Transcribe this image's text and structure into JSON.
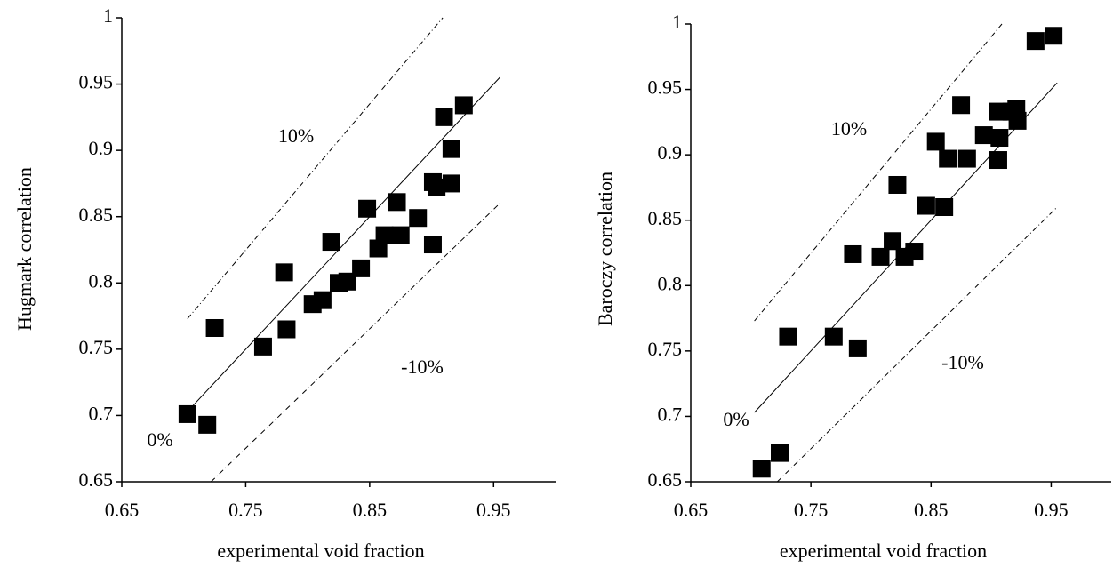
{
  "chart_data": [
    {
      "type": "scatter",
      "xlabel": "experimental void fraction",
      "ylabel": "Hugmark correlation",
      "color": "#000000",
      "x": [
        0.703,
        0.719,
        0.725,
        0.764,
        0.781,
        0.783,
        0.804,
        0.812,
        0.819,
        0.825,
        0.832,
        0.843,
        0.848,
        0.857,
        0.862,
        0.872,
        0.875,
        0.889,
        0.901,
        0.901,
        0.904,
        0.916,
        0.916,
        0.91,
        0.926
      ],
      "values": [
        0.701,
        0.693,
        0.766,
        0.752,
        0.808,
        0.765,
        0.784,
        0.787,
        0.831,
        0.8,
        0.801,
        0.811,
        0.856,
        0.826,
        0.836,
        0.861,
        0.836,
        0.849,
        0.829,
        0.876,
        0.872,
        0.875,
        0.901,
        0.925,
        0.934
      ],
      "reference_lines": [
        {
          "label": "0%",
          "x": [
            0.703,
            0.955
          ],
          "values": [
            0.703,
            0.955
          ]
        },
        {
          "label": "10%",
          "x": [
            0.703,
            0.909
          ],
          "values": [
            0.773,
            1.0
          ]
        },
        {
          "label": "-10%",
          "x": [
            0.722,
            0.955
          ],
          "values": [
            0.65,
            0.86
          ]
        }
      ],
      "xlim": [
        0.65,
        1.0
      ],
      "ylim": [
        0.65,
        1.0
      ],
      "xticks": [
        0.65,
        0.75,
        0.85,
        0.95
      ],
      "yticks": [
        0.65,
        0.7,
        0.75,
        0.8,
        0.85,
        0.9,
        0.95,
        1
      ]
    },
    {
      "type": "scatter",
      "xlabel": "experimental void fraction",
      "ylabel": "Baroczy correlation",
      "color": "#000000",
      "x": [
        0.709,
        0.724,
        0.731,
        0.769,
        0.789,
        0.785,
        0.808,
        0.818,
        0.828,
        0.836,
        0.822,
        0.846,
        0.861,
        0.854,
        0.864,
        0.88,
        0.875,
        0.894,
        0.906,
        0.907,
        0.906,
        0.917,
        0.922,
        0.921,
        0.937,
        0.952
      ],
      "values": [
        0.66,
        0.672,
        0.761,
        0.761,
        0.752,
        0.824,
        0.822,
        0.834,
        0.822,
        0.826,
        0.877,
        0.861,
        0.86,
        0.91,
        0.897,
        0.897,
        0.938,
        0.915,
        0.896,
        0.913,
        0.933,
        0.933,
        0.926,
        0.935,
        0.987,
        0.991
      ],
      "reference_lines": [
        {
          "label": "0%",
          "x": [
            0.703,
            0.955
          ],
          "values": [
            0.703,
            0.955
          ]
        },
        {
          "label": "10%",
          "x": [
            0.703,
            0.909
          ],
          "values": [
            0.773,
            1.0
          ]
        },
        {
          "label": "-10%",
          "x": [
            0.722,
            0.955
          ],
          "values": [
            0.65,
            0.86
          ]
        }
      ],
      "xlim": [
        0.65,
        1.0
      ],
      "ylim": [
        0.65,
        1.0
      ],
      "xticks": [
        0.65,
        0.75,
        0.85,
        0.95
      ],
      "yticks": [
        0.65,
        0.7,
        0.75,
        0.8,
        0.85,
        0.9,
        0.95,
        1
      ]
    }
  ]
}
